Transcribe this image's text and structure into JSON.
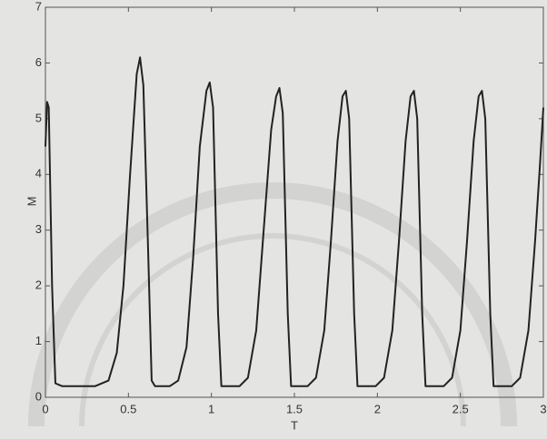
{
  "chart_data": {
    "type": "line",
    "xlabel": "T",
    "ylabel": "M",
    "x": [
      0,
      0.01,
      0.02,
      0.04,
      0.06,
      0.1,
      0.3,
      0.38,
      0.43,
      0.47,
      0.51,
      0.55,
      0.57,
      0.59,
      0.62,
      0.64,
      0.66,
      0.75,
      0.8,
      0.85,
      0.89,
      0.93,
      0.97,
      0.99,
      1.01,
      1.04,
      1.06,
      1.17,
      1.22,
      1.27,
      1.31,
      1.36,
      1.39,
      1.41,
      1.43,
      1.46,
      1.48,
      1.58,
      1.63,
      1.68,
      1.72,
      1.76,
      1.79,
      1.81,
      1.83,
      1.86,
      1.88,
      1.99,
      2.04,
      2.09,
      2.13,
      2.17,
      2.2,
      2.22,
      2.24,
      2.27,
      2.29,
      2.4,
      2.45,
      2.5,
      2.54,
      2.58,
      2.61,
      2.63,
      2.65,
      2.68,
      2.7,
      2.81,
      2.86,
      2.91,
      2.95,
      2.98,
      3.0
    ],
    "values": [
      4.5,
      5.3,
      5.2,
      2,
      0.25,
      0.2,
      0.2,
      0.3,
      0.8,
      2,
      4,
      5.8,
      6.1,
      5.6,
      2.5,
      0.3,
      0.2,
      0.2,
      0.3,
      0.9,
      2.5,
      4.5,
      5.5,
      5.65,
      5.2,
      1.5,
      0.2,
      0.2,
      0.35,
      1.2,
      2.8,
      4.8,
      5.4,
      5.55,
      5.1,
      1.5,
      0.2,
      0.2,
      0.35,
      1.2,
      2.8,
      4.6,
      5.4,
      5.5,
      5.0,
      1.5,
      0.2,
      0.2,
      0.35,
      1.2,
      2.8,
      4.6,
      5.4,
      5.5,
      5.0,
      1.5,
      0.2,
      0.2,
      0.35,
      1.2,
      2.8,
      4.6,
      5.4,
      5.5,
      5.0,
      1.5,
      0.2,
      0.2,
      0.35,
      1.2,
      2.8,
      4.2,
      5.2
    ],
    "color": "#222222",
    "xlim": [
      0,
      3
    ],
    "xticks": [
      0,
      0.5,
      1,
      1.5,
      2,
      2.5,
      3
    ],
    "ylim": [
      0,
      7
    ],
    "yticks": [
      0,
      1,
      2,
      3,
      4,
      5,
      6,
      7
    ]
  }
}
